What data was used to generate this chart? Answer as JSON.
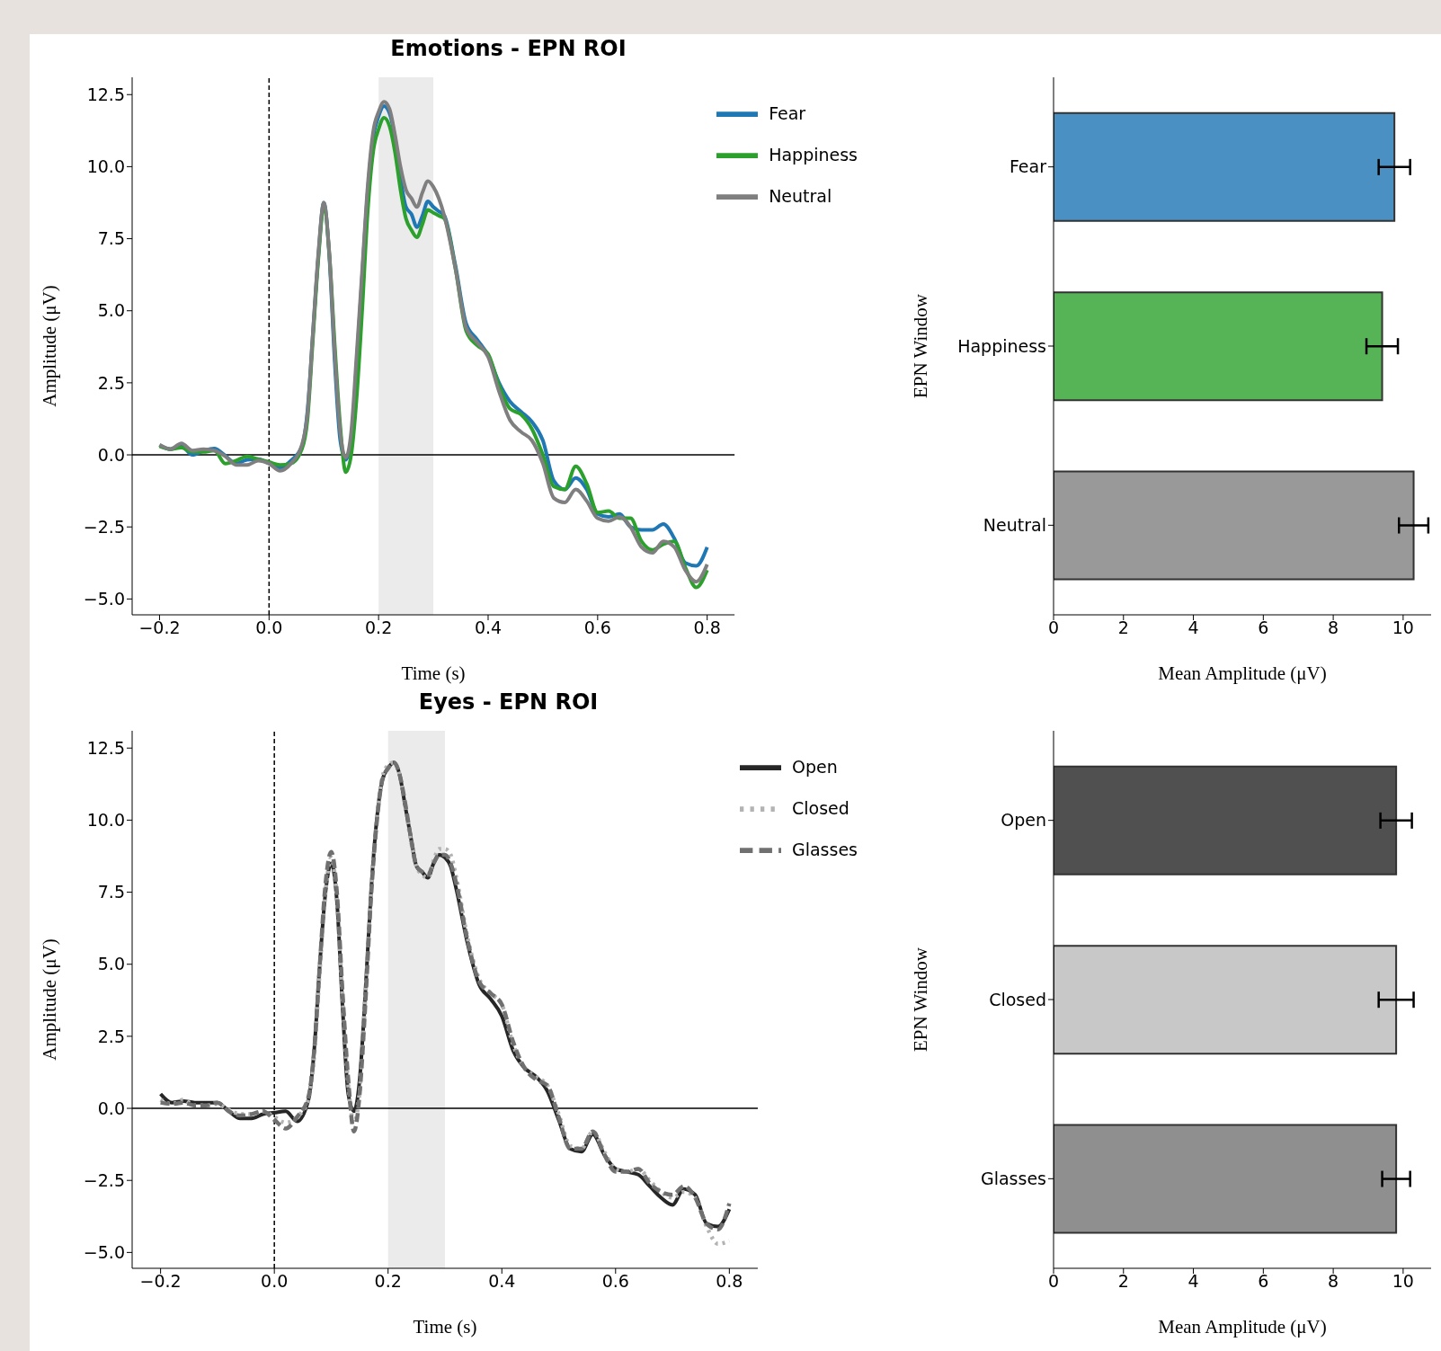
{
  "chart_data": [
    {
      "type": "line",
      "title": "Emotions - EPN ROI",
      "xlabel": "Time (s)",
      "ylabel": "Amplitude (μV)",
      "x": [
        -0.2,
        -0.18,
        -0.16,
        -0.14,
        -0.12,
        -0.1,
        -0.08,
        -0.06,
        -0.04,
        -0.02,
        0,
        0.02,
        0.04,
        0.06,
        0.07,
        0.08,
        0.09,
        0.1,
        0.11,
        0.12,
        0.13,
        0.14,
        0.15,
        0.16,
        0.17,
        0.18,
        0.19,
        0.2,
        0.21,
        0.22,
        0.23,
        0.24,
        0.25,
        0.26,
        0.27,
        0.28,
        0.29,
        0.3,
        0.31,
        0.32,
        0.34,
        0.36,
        0.38,
        0.4,
        0.42,
        0.44,
        0.46,
        0.48,
        0.5,
        0.52,
        0.54,
        0.56,
        0.58,
        0.6,
        0.62,
        0.64,
        0.66,
        0.68,
        0.7,
        0.72,
        0.74,
        0.76,
        0.78,
        0.8
      ],
      "series": [
        {
          "name": "Fear",
          "color": "#1f77b4",
          "line_style": "solid",
          "values": [
            0.34,
            0.2,
            0.3,
            0.0,
            0.14,
            0.22,
            -0.03,
            -0.3,
            -0.17,
            -0.15,
            -0.3,
            -0.45,
            -0.2,
            0.3,
            1.5,
            4.2,
            6.9,
            8.75,
            6.9,
            3.2,
            0.5,
            -0.17,
            0.5,
            3.2,
            6.2,
            9.1,
            11.0,
            11.75,
            12.1,
            11.85,
            11.0,
            9.6,
            8.6,
            8.35,
            7.9,
            8.3,
            8.8,
            8.6,
            8.45,
            8.3,
            6.6,
            4.55,
            4.0,
            3.45,
            2.5,
            1.85,
            1.5,
            1.15,
            0.5,
            -0.9,
            -1.2,
            -0.8,
            -1.2,
            -2.05,
            -2.15,
            -2.05,
            -2.5,
            -2.6,
            -2.6,
            -2.4,
            -2.9,
            -3.75,
            -3.85,
            -3.2
          ]
        },
        {
          "name": "Happiness",
          "color": "#2ca02c",
          "line_style": "solid",
          "values": [
            0.3,
            0.2,
            0.25,
            0.1,
            0.1,
            0.15,
            -0.3,
            -0.2,
            -0.05,
            -0.15,
            -0.25,
            -0.35,
            -0.3,
            0.2,
            1.2,
            4.0,
            6.8,
            8.6,
            7.0,
            3.8,
            1.0,
            -0.6,
            0.0,
            2.0,
            5.0,
            8.4,
            10.5,
            11.3,
            11.7,
            11.4,
            10.5,
            9.2,
            8.2,
            7.8,
            7.55,
            8.0,
            8.5,
            8.4,
            8.3,
            8.2,
            6.5,
            4.3,
            3.8,
            3.5,
            2.4,
            1.6,
            1.4,
            0.9,
            0.0,
            -1.1,
            -1.2,
            -0.4,
            -1.0,
            -2.0,
            -1.95,
            -2.2,
            -2.2,
            -3.0,
            -3.3,
            -3.1,
            -3.0,
            -3.9,
            -4.6,
            -4.0
          ]
        },
        {
          "name": "Neutral",
          "color": "#7f7f7f",
          "line_style": "solid",
          "values": [
            0.35,
            0.2,
            0.4,
            0.15,
            0.2,
            0.15,
            -0.05,
            -0.35,
            -0.35,
            -0.2,
            -0.3,
            -0.55,
            -0.3,
            0.35,
            1.4,
            4.2,
            7.0,
            8.75,
            7.0,
            3.5,
            0.8,
            -0.1,
            0.8,
            3.5,
            6.4,
            9.3,
            11.2,
            11.9,
            12.25,
            12.0,
            11.1,
            10.0,
            9.2,
            8.9,
            8.6,
            9.1,
            9.5,
            9.3,
            8.9,
            8.3,
            6.5,
            4.4,
            3.9,
            3.4,
            2.2,
            1.2,
            0.8,
            0.5,
            -0.3,
            -1.5,
            -1.65,
            -1.2,
            -1.6,
            -2.2,
            -2.3,
            -2.15,
            -2.5,
            -3.2,
            -3.4,
            -3.0,
            -3.2,
            -4.0,
            -4.4,
            -3.8
          ]
        }
      ],
      "xlim": [
        -0.25,
        0.85
      ],
      "ylim": [
        -5.55,
        13.1
      ],
      "xticks": [
        {
          "value": -0.2,
          "label": "−0.2"
        },
        {
          "value": 0,
          "label": "0.0"
        },
        {
          "value": 0.2,
          "label": "0.2"
        },
        {
          "value": 0.4,
          "label": "0.4"
        },
        {
          "value": 0.6,
          "label": "0.6"
        },
        {
          "value": 0.8,
          "label": "0.8"
        }
      ],
      "yticks": [
        {
          "value": -5,
          "label": "−5.0"
        },
        {
          "value": -2.5,
          "label": "−2.5"
        },
        {
          "value": 0,
          "label": "0.0"
        },
        {
          "value": 2.5,
          "label": "2.5"
        },
        {
          "value": 5,
          "label": "5.0"
        },
        {
          "value": 7.5,
          "label": "7.5"
        },
        {
          "value": 10,
          "label": "10.0"
        },
        {
          "value": 12.5,
          "label": "12.5"
        }
      ],
      "ref_lines": [
        {
          "axis": "y",
          "value": 0,
          "color": "#000000",
          "line_style": "solid"
        },
        {
          "axis": "x",
          "value": 0,
          "color": "#000000",
          "line_style": "dashed"
        }
      ],
      "bands": [
        {
          "axis": "x",
          "from": 0.2,
          "to": 0.3,
          "color": "#ebebeb"
        }
      ],
      "legend": "top right",
      "grid": false
    },
    {
      "type": "bar",
      "orientation": "horizontal",
      "xlabel": "Mean Amplitude (μV)",
      "ylabel": "EPN Window",
      "categories": [
        "Fear",
        "Happiness",
        "Neutral"
      ],
      "values": [
        9.75,
        9.4,
        10.3
      ],
      "errors": [
        0.45,
        0.45,
        0.42
      ],
      "colors": [
        "#4a90c2",
        "#56b356",
        "#999999"
      ],
      "xlim": [
        0,
        10.8
      ],
      "xticks": [
        0,
        2,
        4,
        6,
        8,
        10
      ],
      "legend": false,
      "grid": false
    },
    {
      "type": "line",
      "title": "Eyes - EPN ROI",
      "xlabel": "Time (s)",
      "ylabel": "Amplitude (μV)",
      "x": [
        -0.2,
        -0.18,
        -0.16,
        -0.14,
        -0.12,
        -0.1,
        -0.08,
        -0.06,
        -0.04,
        -0.02,
        0,
        0.02,
        0.04,
        0.06,
        0.07,
        0.08,
        0.09,
        0.1,
        0.11,
        0.12,
        0.13,
        0.14,
        0.15,
        0.16,
        0.17,
        0.18,
        0.19,
        0.2,
        0.21,
        0.22,
        0.23,
        0.24,
        0.25,
        0.26,
        0.27,
        0.28,
        0.29,
        0.3,
        0.31,
        0.32,
        0.34,
        0.36,
        0.38,
        0.4,
        0.42,
        0.44,
        0.46,
        0.48,
        0.5,
        0.52,
        0.54,
        0.56,
        0.58,
        0.6,
        0.62,
        0.64,
        0.66,
        0.68,
        0.7,
        0.72,
        0.74,
        0.76,
        0.78,
        0.8
      ],
      "series": [
        {
          "name": "Open",
          "color": "#262626",
          "line_style": "solid",
          "values": [
            0.5,
            0.2,
            0.25,
            0.2,
            0.2,
            0.2,
            -0.1,
            -0.35,
            -0.35,
            -0.2,
            -0.15,
            -0.1,
            -0.45,
            0.3,
            2.0,
            5.0,
            7.5,
            8.5,
            7.2,
            3.5,
            0.5,
            -0.1,
            1.0,
            4.0,
            7.5,
            10.0,
            11.4,
            11.8,
            12.0,
            11.6,
            10.5,
            9.4,
            8.4,
            8.2,
            8.0,
            8.5,
            8.8,
            8.7,
            8.4,
            7.6,
            5.7,
            4.3,
            3.8,
            3.2,
            2.0,
            1.4,
            1.1,
            0.6,
            -0.4,
            -1.4,
            -1.5,
            -0.9,
            -1.6,
            -2.1,
            -2.2,
            -2.3,
            -2.7,
            -3.1,
            -3.35,
            -2.8,
            -3.0,
            -4.0,
            -4.1,
            -3.5
          ]
        },
        {
          "name": "Closed",
          "color": "#b3b3b3",
          "line_style": "dotted",
          "values": [
            0.3,
            0.15,
            0.3,
            0.1,
            0.1,
            0.15,
            -0.05,
            -0.2,
            -0.2,
            -0.1,
            -0.3,
            -0.5,
            -0.3,
            0.3,
            1.8,
            4.8,
            7.5,
            8.7,
            7.3,
            3.8,
            0.8,
            -0.5,
            0.6,
            3.8,
            7.5,
            10.0,
            11.5,
            11.9,
            12.0,
            11.6,
            10.5,
            9.3,
            8.4,
            8.1,
            8.0,
            8.6,
            9.0,
            9.0,
            8.8,
            8.0,
            5.9,
            4.5,
            4.0,
            3.6,
            2.2,
            1.4,
            1.1,
            0.8,
            -0.2,
            -1.3,
            -1.4,
            -0.8,
            -1.5,
            -2.1,
            -2.2,
            -2.1,
            -2.5,
            -2.9,
            -3.1,
            -2.9,
            -3.1,
            -4.1,
            -4.7,
            -4.6
          ]
        },
        {
          "name": "Glasses",
          "color": "#707070",
          "line_style": "dashed",
          "values": [
            0.2,
            0.15,
            0.2,
            0.1,
            0.1,
            0.2,
            -0.1,
            -0.25,
            -0.2,
            -0.1,
            -0.4,
            -0.7,
            -0.3,
            0.4,
            2.0,
            5.0,
            7.8,
            8.9,
            7.5,
            4.0,
            1.0,
            -0.8,
            0.5,
            3.6,
            7.3,
            9.9,
            11.4,
            11.8,
            12.0,
            11.6,
            10.6,
            9.4,
            8.4,
            8.2,
            8.1,
            8.5,
            8.8,
            8.8,
            8.5,
            7.8,
            5.8,
            4.4,
            4.0,
            3.6,
            2.3,
            1.4,
            1.0,
            0.8,
            -0.3,
            -1.4,
            -1.4,
            -0.8,
            -1.6,
            -2.2,
            -2.2,
            -2.1,
            -2.6,
            -2.9,
            -3.0,
            -2.7,
            -3.1,
            -4.0,
            -4.2,
            -3.3
          ]
        }
      ],
      "xlim": [
        -0.25,
        0.85
      ],
      "ylim": [
        -5.55,
        13.1
      ],
      "xticks": [
        {
          "value": -0.2,
          "label": "−0.2"
        },
        {
          "value": 0,
          "label": "0.0"
        },
        {
          "value": 0.2,
          "label": "0.2"
        },
        {
          "value": 0.4,
          "label": "0.4"
        },
        {
          "value": 0.6,
          "label": "0.6"
        },
        {
          "value": 0.8,
          "label": "0.8"
        }
      ],
      "yticks": [
        {
          "value": -5,
          "label": "−5.0"
        },
        {
          "value": -2.5,
          "label": "−2.5"
        },
        {
          "value": 0,
          "label": "0.0"
        },
        {
          "value": 2.5,
          "label": "2.5"
        },
        {
          "value": 5,
          "label": "5.0"
        },
        {
          "value": 7.5,
          "label": "7.5"
        },
        {
          "value": 10,
          "label": "10.0"
        },
        {
          "value": 12.5,
          "label": "12.5"
        }
      ],
      "ref_lines": [
        {
          "axis": "y",
          "value": 0,
          "color": "#000000",
          "line_style": "solid"
        },
        {
          "axis": "x",
          "value": 0,
          "color": "#000000",
          "line_style": "dashed"
        }
      ],
      "bands": [
        {
          "axis": "x",
          "from": 0.2,
          "to": 0.3,
          "color": "#ebebeb"
        }
      ],
      "legend": "top right",
      "grid": false
    },
    {
      "type": "bar",
      "orientation": "horizontal",
      "xlabel": "Mean Amplitude (μV)",
      "ylabel": "EPN Window",
      "categories": [
        "Open",
        "Closed",
        "Glasses"
      ],
      "values": [
        9.8,
        9.8,
        9.8
      ],
      "errors": [
        0.45,
        0.5,
        0.4
      ],
      "colors": [
        "#505050",
        "#c8c8c8",
        "#8f8f8f"
      ],
      "xlim": [
        0,
        10.8
      ],
      "xticks": [
        0,
        2,
        4,
        6,
        8,
        10
      ],
      "legend": false,
      "grid": false
    }
  ]
}
